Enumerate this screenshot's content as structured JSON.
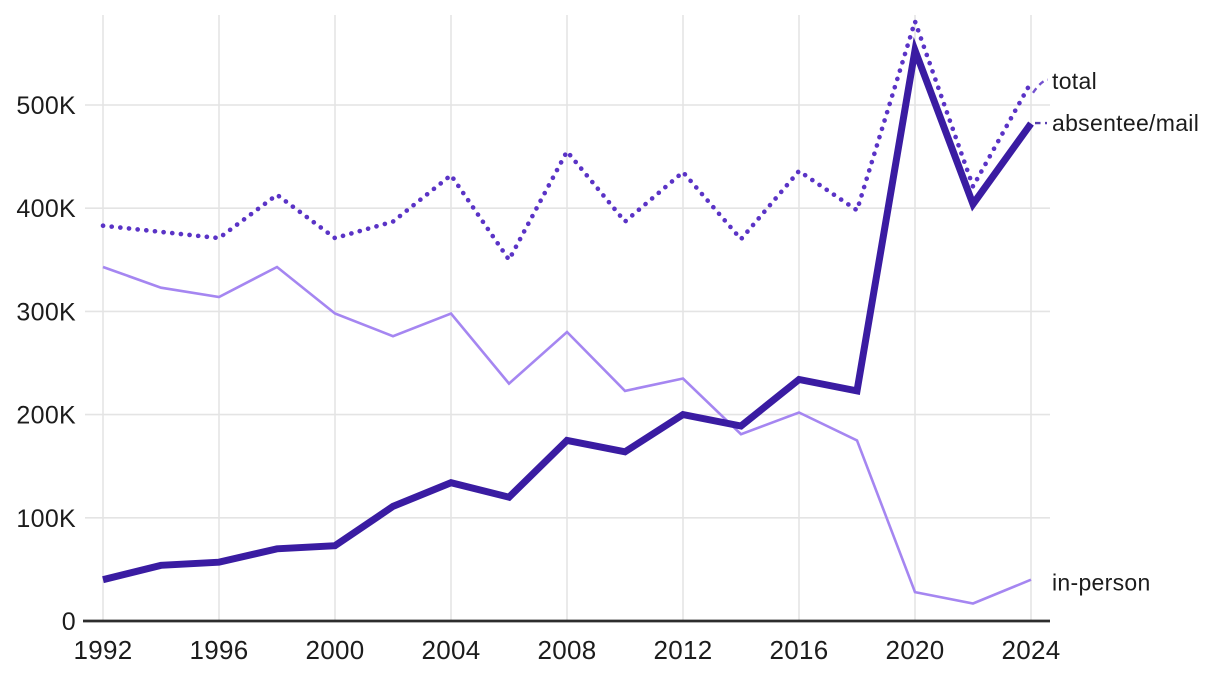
{
  "chart_data": {
    "type": "line",
    "x": [
      1992,
      1994,
      1996,
      1998,
      2000,
      2002,
      2004,
      2006,
      2008,
      2010,
      2012,
      2014,
      2016,
      2018,
      2020,
      2022,
      2024
    ],
    "series": [
      {
        "name": "total",
        "label": "total",
        "line_style": "dotted",
        "color": "#5a33c6",
        "values": [
          383000,
          377000,
          371000,
          413000,
          371000,
          387000,
          432000,
          350000,
          455000,
          387000,
          435000,
          370000,
          436000,
          398000,
          581000,
          421000,
          522000
        ]
      },
      {
        "name": "absentee/mail",
        "label": "absentee/mail",
        "line_style": "solid-thick",
        "color": "#3a1ca2",
        "values": [
          40000,
          54000,
          57000,
          70000,
          73000,
          111000,
          134000,
          120000,
          175000,
          164000,
          200000,
          189000,
          234000,
          223000,
          553000,
          404000,
          482000
        ]
      },
      {
        "name": "in-person",
        "label": "in-person",
        "line_style": "solid",
        "color": "#a586f1",
        "values": [
          343000,
          323000,
          314000,
          343000,
          298000,
          276000,
          298000,
          230000,
          280000,
          223000,
          235000,
          181000,
          202000,
          175000,
          28000,
          17000,
          40000
        ]
      }
    ],
    "x_axis": {
      "tick_years": [
        1992,
        1996,
        2000,
        2004,
        2008,
        2012,
        2016,
        2020,
        2024
      ],
      "tick_labels": [
        "1992",
        "1996",
        "2000",
        "2004",
        "2008",
        "2012",
        "2016",
        "2020",
        "2024"
      ]
    },
    "y_axis": {
      "ticks": [
        {
          "value": 0,
          "label": "0"
        },
        {
          "value": 100000,
          "label": "100K"
        },
        {
          "value": 200000,
          "label": "200K"
        },
        {
          "value": 300000,
          "label": "300K"
        },
        {
          "value": 400000,
          "label": "400K"
        },
        {
          "value": 500000,
          "label": "500K"
        }
      ],
      "ylim": [
        0,
        587000
      ]
    },
    "grid": {
      "vertical": true,
      "horizontal": true
    },
    "legend_position": "direct-labels-right",
    "direct_labels": [
      {
        "series": "total",
        "text": "total",
        "leader": "dashed"
      },
      {
        "series": "absentee/mail",
        "text": "absentee/mail",
        "leader": "dashed"
      },
      {
        "series": "in-person",
        "text": "in-person",
        "leader": "none"
      }
    ],
    "colors": {
      "gridline": "#e4e4e4",
      "axis_line": "#2d2d2d",
      "tick_text": "#1c1c1c",
      "label_text": "#1f1f1f"
    }
  }
}
